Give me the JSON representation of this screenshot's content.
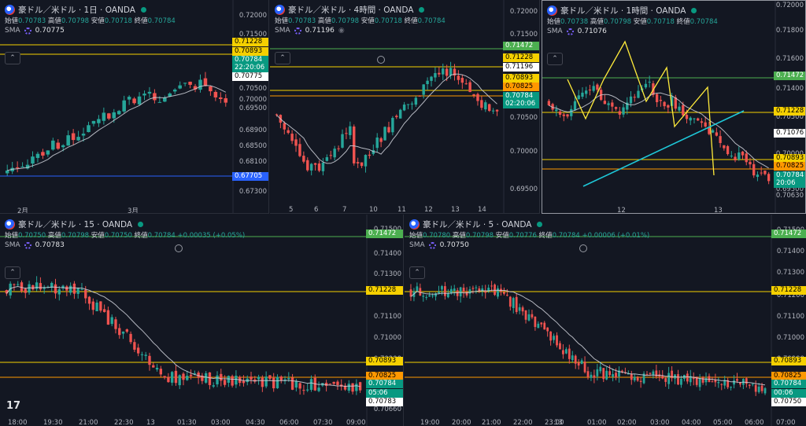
{
  "colors": {
    "bg": "#131722",
    "up": "#26a69a",
    "down": "#ef5350",
    "sma": "#d1d4dc",
    "yellow": "#f5d000",
    "orange": "#ff9800",
    "green_tag": "#4caf50",
    "blue": "#2962ff",
    "cyan": "#1ec8d8"
  },
  "panels": [
    {
      "title": "豪ドル／米ドル · 1日 · OANDA",
      "ohlc": {
        "open_label": "始値",
        "open": "0.70783",
        "high_label": "高値",
        "high": "0.70798",
        "low_label": "安値",
        "low": "0.70718",
        "close_label": "終値",
        "close": "0.70784",
        "change": ""
      },
      "sma_label": "SMA",
      "sma_value": "0.70775",
      "axis": [
        "0.72000",
        "0.71500",
        "0.70500",
        "0.70000",
        "0.69500",
        "0.68900",
        "0.68500",
        "0.68100",
        "0.67300"
      ],
      "tags": [
        {
          "text": "0.71228",
          "kind": "yellow"
        },
        {
          "text": "0.70893",
          "kind": "yellow"
        },
        {
          "text": "0.70784",
          "kind": "green"
        },
        {
          "text": "22:20:06",
          "kind": "green"
        },
        {
          "text": "0.70775",
          "kind": "white"
        },
        {
          "text": "0.67705",
          "kind": "blue"
        }
      ],
      "times": [
        "2月",
        "3月"
      ]
    },
    {
      "title": "豪ドル／米ドル · 4時間 · OANDA",
      "ohlc": {
        "open_label": "始値",
        "open": "0.70783",
        "high_label": "高値",
        "high": "0.70798",
        "low_label": "安値",
        "low": "0.70718",
        "close_label": "終値",
        "close": "0.70784",
        "change": ""
      },
      "sma_label": "SMA",
      "sma_value": "0.71196",
      "axis": [
        "0.72000",
        "0.71500",
        "0.70500",
        "0.70000",
        "0.69500"
      ],
      "tags": [
        {
          "text": "0.71472",
          "kind": "green_tag"
        },
        {
          "text": "0.71228",
          "kind": "yellow"
        },
        {
          "text": "0.71196",
          "kind": "white"
        },
        {
          "text": "0.70893",
          "kind": "yellow"
        },
        {
          "text": "0.70825",
          "kind": "orange"
        },
        {
          "text": "0.70784",
          "kind": "green"
        },
        {
          "text": "02:20:06",
          "kind": "green"
        }
      ],
      "times": [
        "5",
        "6",
        "7",
        "10",
        "11",
        "12",
        "13",
        "14"
      ]
    },
    {
      "title": "豪ドル／米ドル · 1時間 · OANDA",
      "ohlc": {
        "open_label": "始値",
        "open": "0.70738",
        "high_label": "高値",
        "high": "0.70798",
        "low_label": "安値",
        "low": "0.70718",
        "close_label": "終値",
        "close": "0.70784",
        "change": ""
      },
      "sma_label": "SMA",
      "sma_value": "0.71076",
      "axis": [
        "0.72000",
        "0.71800",
        "0.71600",
        "0.71400",
        "0.70500",
        "0.70000",
        "0.69500",
        "0.70630"
      ],
      "tags": [
        {
          "text": "0.71472",
          "kind": "green_tag"
        },
        {
          "text": "0.71228",
          "kind": "yellow"
        },
        {
          "text": "0.71076",
          "kind": "white"
        },
        {
          "text": "0.70893",
          "kind": "yellow"
        },
        {
          "text": "0.70825",
          "kind": "orange"
        },
        {
          "text": "0.70784",
          "kind": "green"
        },
        {
          "text": "20:06",
          "kind": "green"
        }
      ],
      "times": [
        "12",
        "13"
      ]
    },
    {
      "title": "豪ドル／米ドル · 15 · OANDA",
      "ohlc": {
        "open_label": "始値",
        "open": "0.70750",
        "high_label": "高値",
        "high": "0.70798",
        "low_label": "安値",
        "low": "0.70750",
        "close_label": "終値",
        "close": "0.70784",
        "change": "+0.00035 (+0.05%)"
      },
      "sma_label": "SMA",
      "sma_value": "0.70783",
      "axis": [
        "0.71500",
        "0.71400",
        "0.71300",
        "0.71100",
        "0.71000",
        "0.70900",
        "0.70660"
      ],
      "tags": [
        {
          "text": "0.71472",
          "kind": "green_tag"
        },
        {
          "text": "0.71228",
          "kind": "yellow"
        },
        {
          "text": "0.70893",
          "kind": "yellow"
        },
        {
          "text": "0.70825",
          "kind": "orange"
        },
        {
          "text": "0.70784",
          "kind": "green"
        },
        {
          "text": "05:06",
          "kind": "green"
        },
        {
          "text": "0.70783",
          "kind": "white"
        }
      ],
      "times": [
        "18:00",
        "19:30",
        "21:00",
        "22:30",
        "13",
        "01:30",
        "03:00",
        "04:30",
        "06:00",
        "07:30",
        "09:00"
      ]
    },
    {
      "title": "豪ドル／米ドル · 5 · OANDA",
      "ohlc": {
        "open_label": "始値",
        "open": "0.70780",
        "high_label": "高値",
        "high": "0.70798",
        "low_label": "安値",
        "low": "0.70776",
        "close_label": "終値",
        "close": "0.70784",
        "change": "+0.00006 (+0.01%)"
      },
      "sma_label": "SMA",
      "sma_value": "0.70750",
      "axis": [
        "0.71500",
        "0.71400",
        "0.71300",
        "0.71200",
        "0.71100",
        "0.71000",
        "0.70900",
        "0.70800",
        "0.70660"
      ],
      "tags": [
        {
          "text": "0.71472",
          "kind": "green_tag"
        },
        {
          "text": "0.71228",
          "kind": "yellow"
        },
        {
          "text": "0.70893",
          "kind": "yellow"
        },
        {
          "text": "0.70825",
          "kind": "orange"
        },
        {
          "text": "0.70784",
          "kind": "green"
        },
        {
          "text": "00:06",
          "kind": "green"
        },
        {
          "text": "0.70750",
          "kind": "white"
        }
      ],
      "times": [
        "19:00",
        "20:00",
        "21:00",
        "22:00",
        "23:00",
        "13",
        "01:00",
        "02:00",
        "03:00",
        "04:00",
        "05:00",
        "06:00",
        "07:00"
      ]
    }
  ],
  "tv_logo": "17"
}
